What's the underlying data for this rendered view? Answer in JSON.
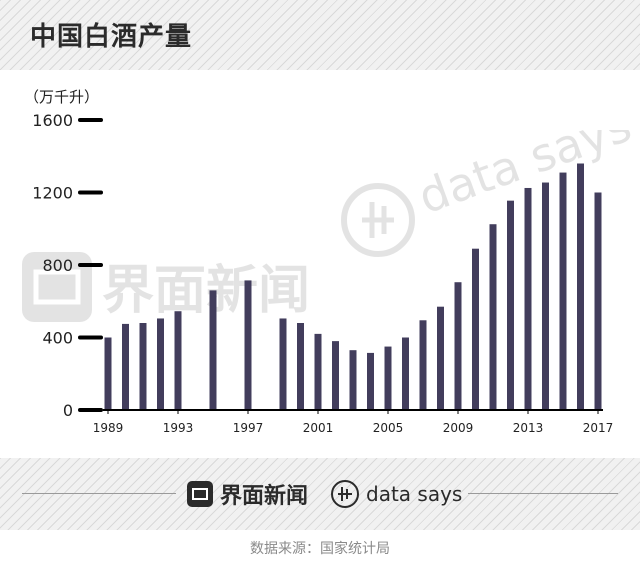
{
  "header": {
    "title": "中国白酒产量"
  },
  "brand": {
    "name": "界面新闻",
    "partner": "data says"
  },
  "footer": {
    "source": "数据来源：国家统计局"
  },
  "colors": {
    "bar": "#423d5c",
    "axis": "#000000",
    "hatch": "#d9d9d9"
  },
  "chart_data": {
    "type": "bar",
    "title": "中国白酒产量",
    "unit_label": "（万千升）",
    "ylim": [
      0,
      1600
    ],
    "yticks": [
      0,
      400,
      800,
      1200,
      1600
    ],
    "x_tick_labels": [
      "1989",
      "1993",
      "1997",
      "2001",
      "2005",
      "2009",
      "2013",
      "2017"
    ],
    "grid": false,
    "legend": "none",
    "categories": [
      "1989",
      "1990",
      "1991",
      "1992",
      "1993",
      "1994",
      "1995",
      "1996",
      "1997",
      "1998",
      "1999",
      "2000",
      "2001",
      "2002",
      "2003",
      "2004",
      "2005",
      "2006",
      "2007",
      "2008",
      "2009",
      "2010",
      "2011",
      "2012",
      "2013",
      "2014",
      "2015",
      "2016",
      "2017"
    ],
    "values": [
      400,
      475,
      480,
      505,
      545,
      null,
      660,
      null,
      715,
      null,
      505,
      480,
      420,
      380,
      330,
      315,
      350,
      400,
      495,
      570,
      705,
      890,
      1025,
      1155,
      1225,
      1255,
      1310,
      1360,
      1200
    ]
  }
}
